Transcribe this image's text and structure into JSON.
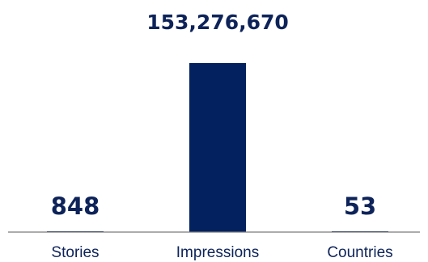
{
  "chart_data": {
    "type": "bar",
    "categories": [
      "Stories",
      "Impressions",
      "Countries"
    ],
    "values": [
      848,
      153276670,
      53
    ],
    "value_labels": [
      "848",
      "153,276,670",
      "53"
    ],
    "title": "",
    "xlabel": "",
    "ylabel": "",
    "ylim": [
      0,
      153276670
    ],
    "grid": false,
    "legend": "none",
    "colors": {
      "bar": "#03215e",
      "baseline": "#7a7a7a",
      "text": "#0d2359"
    }
  }
}
